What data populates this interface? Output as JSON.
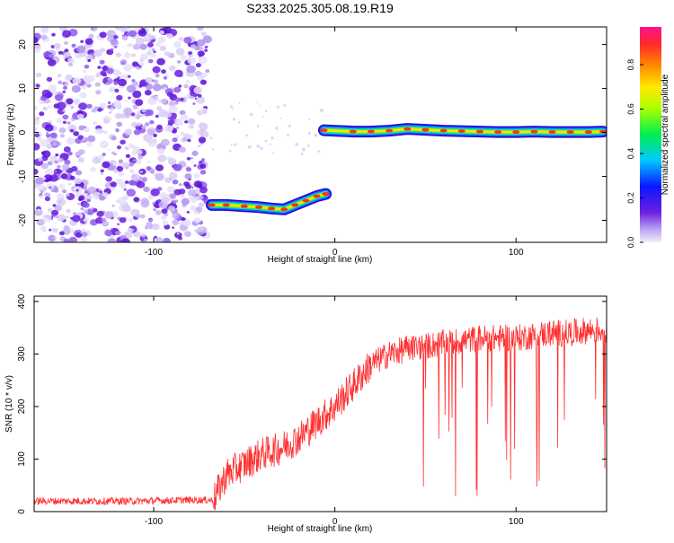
{
  "title": "S233.2025.305.08.19.R19",
  "chart_data": [
    {
      "type": "heatmap",
      "xlabel": "Height of straight line (km)",
      "ylabel": "Frequency (Hz)",
      "xlim": [
        -166,
        150
      ],
      "ylim": [
        -25,
        24
      ],
      "x_ticks": [
        -100,
        0,
        100
      ],
      "y_ticks": [
        -20,
        -10,
        0,
        10,
        20
      ],
      "colorbar": {
        "label": "Normalized spectral amplitude",
        "range": [
          0,
          0.97
        ],
        "ticks": [
          "0.0",
          "0.2",
          "0.4",
          "0.6",
          "0.8"
        ]
      },
      "signal_track": [
        [
          -68,
          -16.5
        ],
        [
          -60,
          -16.5
        ],
        [
          -50,
          -16.8
        ],
        [
          -42,
          -17
        ],
        [
          -35,
          -17.3
        ],
        [
          -28,
          -17.5
        ],
        [
          -22,
          -16.5
        ],
        [
          -16,
          -15.5
        ],
        [
          -10,
          -14.5
        ],
        [
          -5,
          -14
        ],
        [
          -6,
          0.5
        ],
        [
          10,
          0.2
        ],
        [
          20,
          0.2
        ],
        [
          30,
          0.4
        ],
        [
          40,
          0.8
        ],
        [
          50,
          0.6
        ],
        [
          60,
          0.4
        ],
        [
          70,
          0.3
        ],
        [
          80,
          0.2
        ],
        [
          90,
          0.1
        ],
        [
          100,
          0.1
        ],
        [
          110,
          0.2
        ],
        [
          120,
          0.1
        ],
        [
          130,
          0.1
        ],
        [
          140,
          0.1
        ],
        [
          148,
          0.2
        ]
      ],
      "noise_region_x": [
        -166,
        -70
      ]
    },
    {
      "type": "line",
      "xlabel": "Height of straight line (km)",
      "ylabel": "SNR (10 * v/v)",
      "xlim": [
        -166,
        150
      ],
      "ylim": [
        0,
        410
      ],
      "x_ticks": [
        -100,
        0,
        100
      ],
      "y_ticks": [
        0,
        100,
        200,
        300,
        400
      ],
      "series": [
        {
          "color": "#ff3030",
          "x": [
            -166,
            -140,
            -110,
            -80,
            -67,
            -60,
            -50,
            -40,
            -30,
            -20,
            -10,
            0,
            10,
            20,
            30,
            40,
            50,
            60,
            70,
            80,
            90,
            100,
            110,
            120,
            130,
            140,
            150
          ],
          "y": [
            20,
            20,
            20,
            22,
            22,
            70,
            90,
            110,
            120,
            140,
            170,
            200,
            240,
            280,
            300,
            310,
            315,
            320,
            325,
            330,
            330,
            330,
            335,
            340,
            340,
            345,
            345
          ]
        }
      ]
    }
  ]
}
